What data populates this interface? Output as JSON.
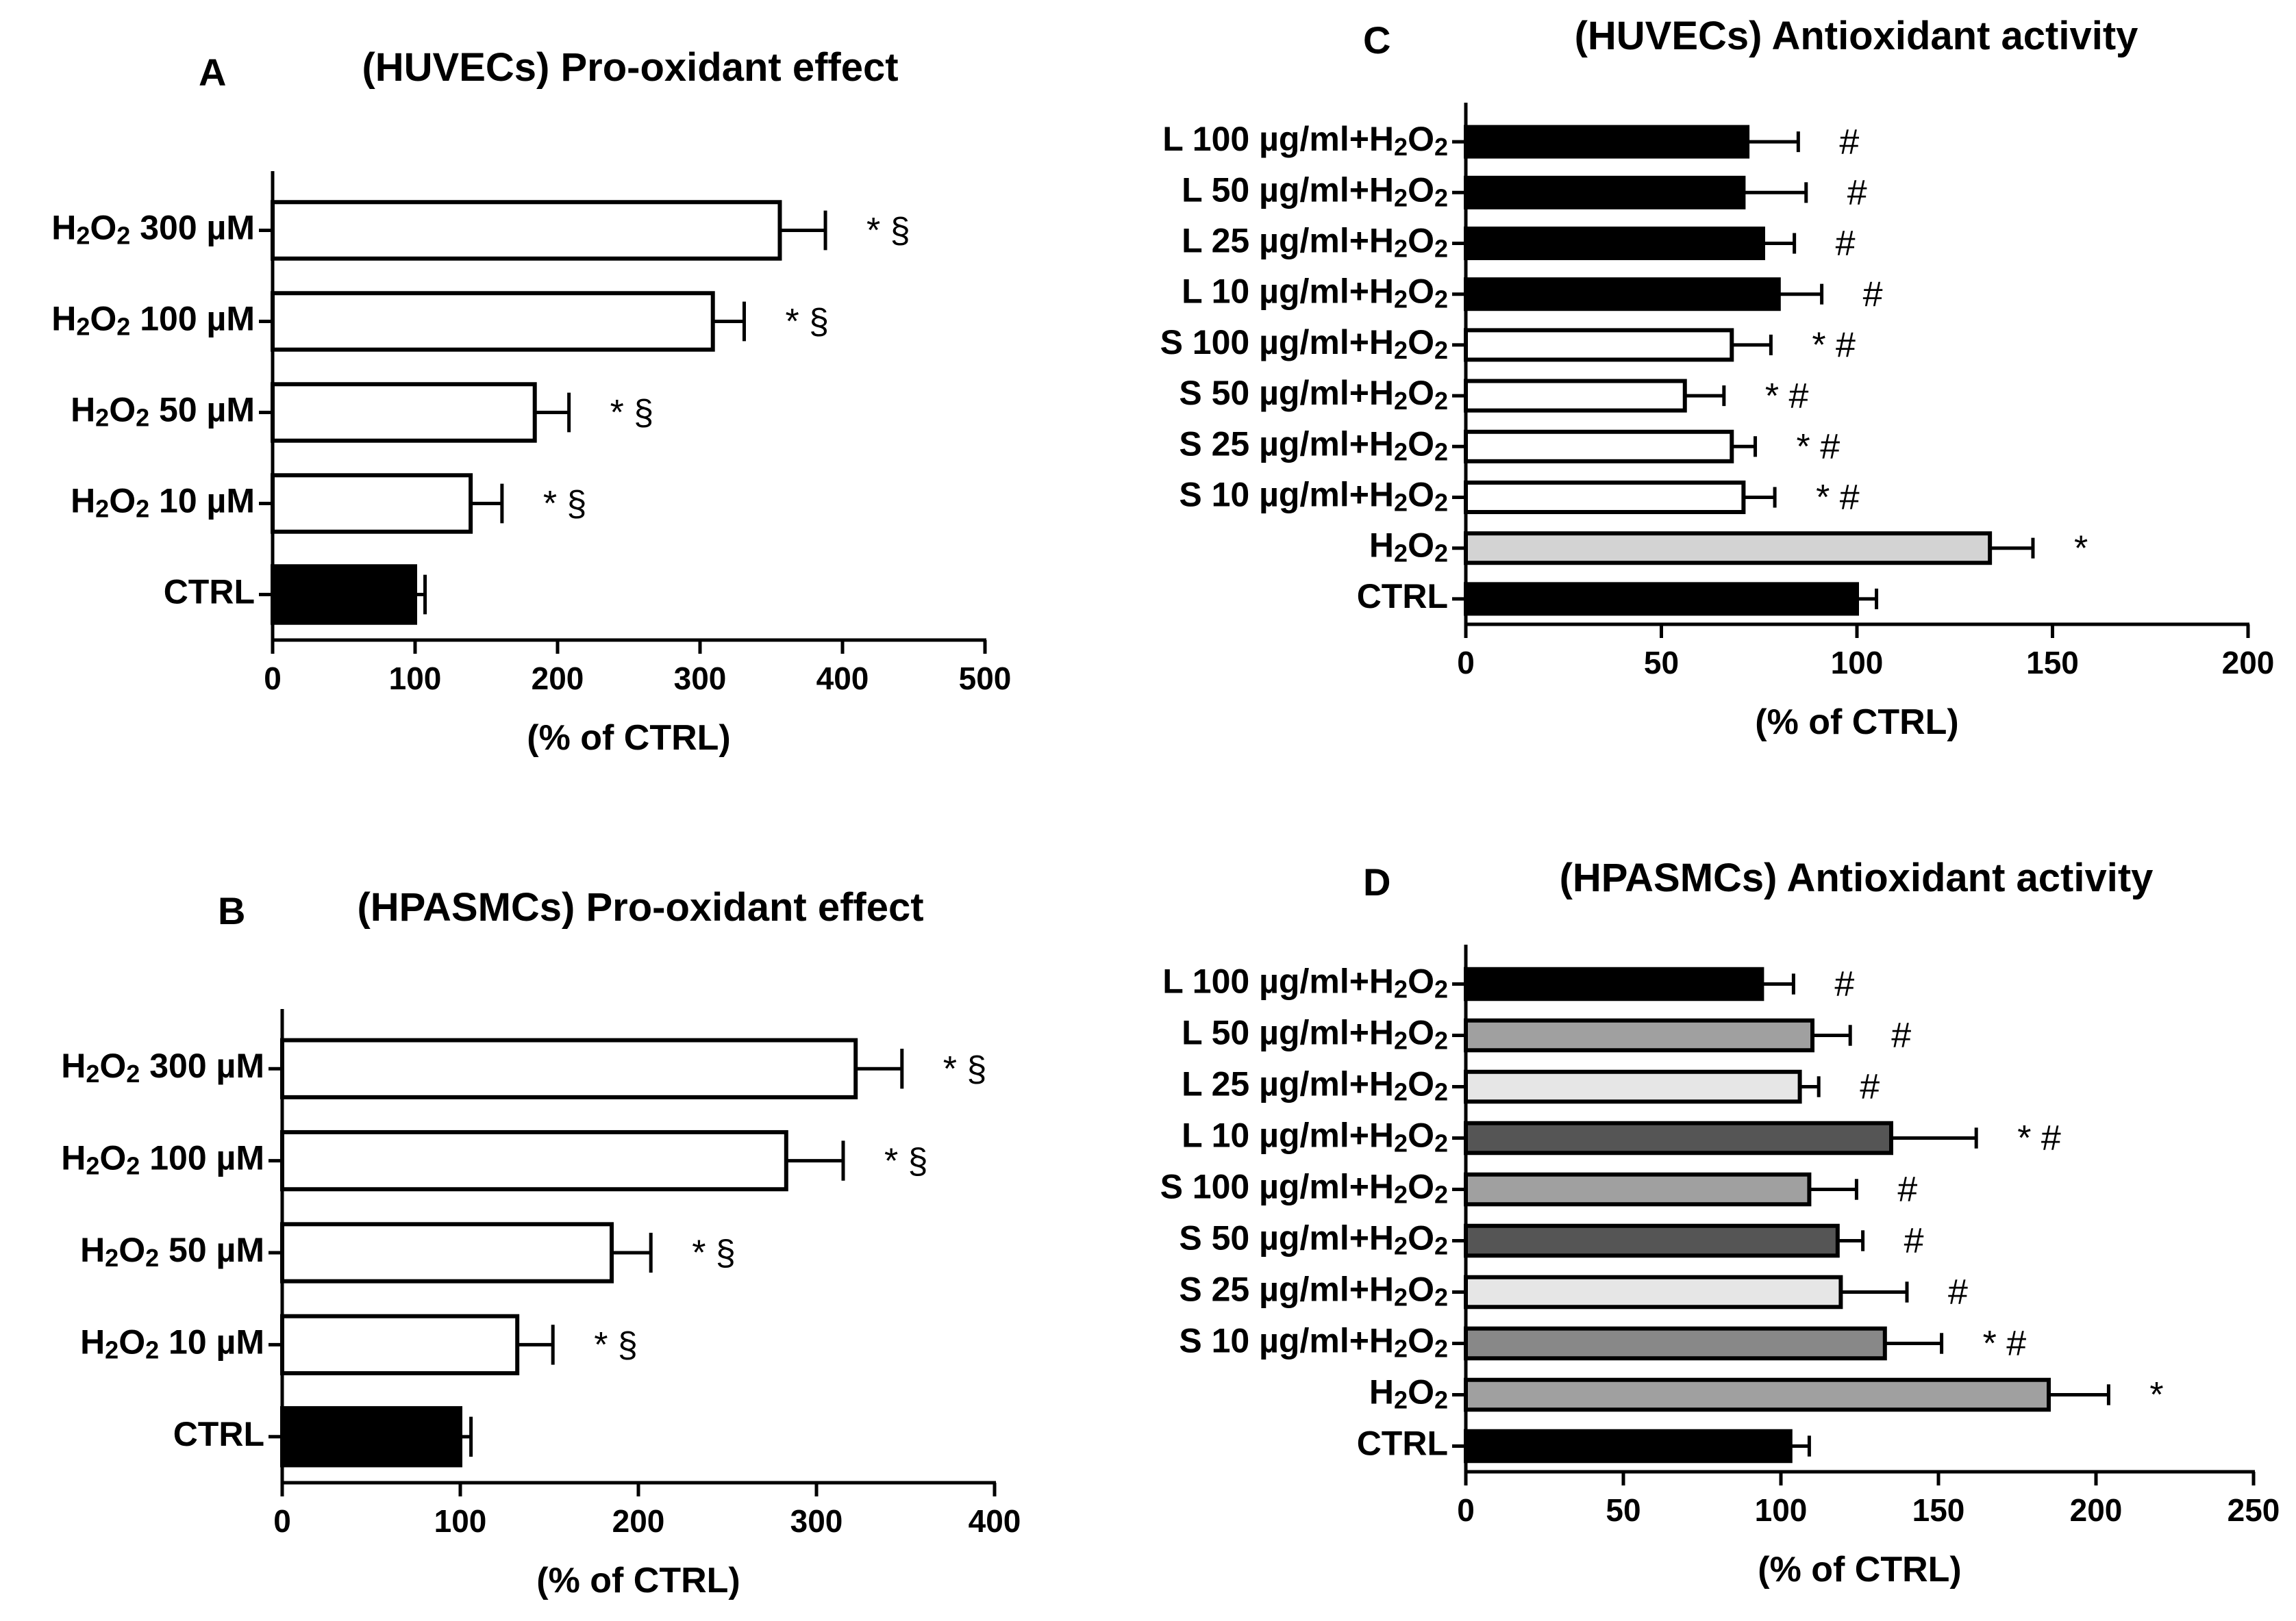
{
  "chart_data": [
    {
      "id": "A",
      "letter": "A",
      "type": "bar",
      "orientation": "horizontal",
      "title": "(HUVECs) Pro-oxidant effect",
      "xlabel": "(% of CTRL)",
      "xlim": [
        0,
        500
      ],
      "xticks": [
        0,
        100,
        200,
        300,
        400,
        500
      ],
      "categories": [
        "H2O2 300 µM",
        "H2O2 100 µM",
        "H2O2 50 µM",
        "H2O2 10 µM",
        "CTRL"
      ],
      "values": [
        356,
        309,
        184,
        139,
        100
      ],
      "errors": [
        32,
        22,
        24,
        22,
        7
      ],
      "colors": [
        "#ffffff",
        "#ffffff",
        "#ffffff",
        "#ffffff",
        "#000000"
      ],
      "annotations": [
        "* §",
        "* §",
        "* §",
        "* §",
        ""
      ]
    },
    {
      "id": "B",
      "letter": "B",
      "type": "bar",
      "orientation": "horizontal",
      "title": "(HPASMCs) Pro-oxidant effect",
      "xlabel": "(% of CTRL)",
      "xlim": [
        0,
        400
      ],
      "xticks": [
        0,
        100,
        200,
        300,
        400
      ],
      "categories": [
        "H2O2 300 µM",
        "H2O2 100 µM",
        "H2O2 50 µM",
        "H2O2 10 µM",
        "CTRL"
      ],
      "values": [
        322,
        283,
        185,
        132,
        100
      ],
      "errors": [
        26,
        32,
        22,
        20,
        6
      ],
      "colors": [
        "#ffffff",
        "#ffffff",
        "#ffffff",
        "#ffffff",
        "#000000"
      ],
      "annotations": [
        "* §",
        "* §",
        "* §",
        "* §",
        ""
      ]
    },
    {
      "id": "C",
      "letter": "C",
      "type": "bar",
      "orientation": "horizontal",
      "title": "(HUVECs) Antioxidant activity",
      "xlabel": "(% of CTRL)",
      "xlim": [
        0,
        200
      ],
      "xticks": [
        0,
        50,
        100,
        150,
        200
      ],
      "categories": [
        "L 100 µg/ml+H2O2",
        "L 50 µg/ml+H2O2",
        "L 25 µg/ml+H2O2",
        "L 10 µg/ml+H2O2",
        "S 100 µg/ml+H2O2",
        "S 50 µg/ml+H2O2",
        "S 25 µg/ml+H2O2",
        "S 10 µg/ml+H2O2",
        "H2O2",
        "CTRL"
      ],
      "values": [
        72,
        71,
        76,
        80,
        68,
        56,
        68,
        71,
        134,
        100
      ],
      "errors": [
        13,
        16,
        8,
        11,
        10,
        10,
        6,
        8,
        11,
        5
      ],
      "colors": [
        "#000000",
        "#000000",
        "#000000",
        "#000000",
        "#ffffff",
        "#ffffff",
        "#ffffff",
        "#ffffff",
        "#d3d3d3",
        "#000000"
      ],
      "annotations": [
        "#",
        "#",
        "#",
        "#",
        "* #",
        "* #",
        "* #",
        "* #",
        "*",
        ""
      ]
    },
    {
      "id": "D",
      "letter": "D",
      "type": "bar",
      "orientation": "horizontal",
      "title": "(HPASMCs) Antioxidant activity",
      "xlabel": "(% of CTRL)",
      "xlim": [
        0,
        250
      ],
      "xticks": [
        0,
        50,
        100,
        150,
        200,
        250
      ],
      "categories": [
        "L 100 µg/ml+H2O2",
        "L 50 µg/ml+H2O2",
        "L 25 µg/ml+H2O2",
        "L 10 µg/ml+H2O2",
        "S 100 µg/ml+H2O2",
        "S 50 µg/ml+H2O2",
        "S 25 µg/ml+H2O2",
        "S 10 µg/ml+H2O2",
        "H2O2",
        "CTRL"
      ],
      "values": [
        94,
        110,
        106,
        135,
        109,
        118,
        119,
        133,
        185,
        103
      ],
      "errors": [
        10,
        12,
        6,
        27,
        15,
        8,
        21,
        18,
        19,
        6
      ],
      "colors": [
        "#000000",
        "#a0a0a0",
        "#e6e6e6",
        "#555555",
        "#a0a0a0",
        "#555555",
        "#e6e6e6",
        "#888888",
        "#a0a0a0",
        "#000000"
      ],
      "annotations": [
        "#",
        "#",
        "#",
        "* #",
        "#",
        "#",
        "#",
        "* #",
        "*",
        ""
      ]
    }
  ]
}
